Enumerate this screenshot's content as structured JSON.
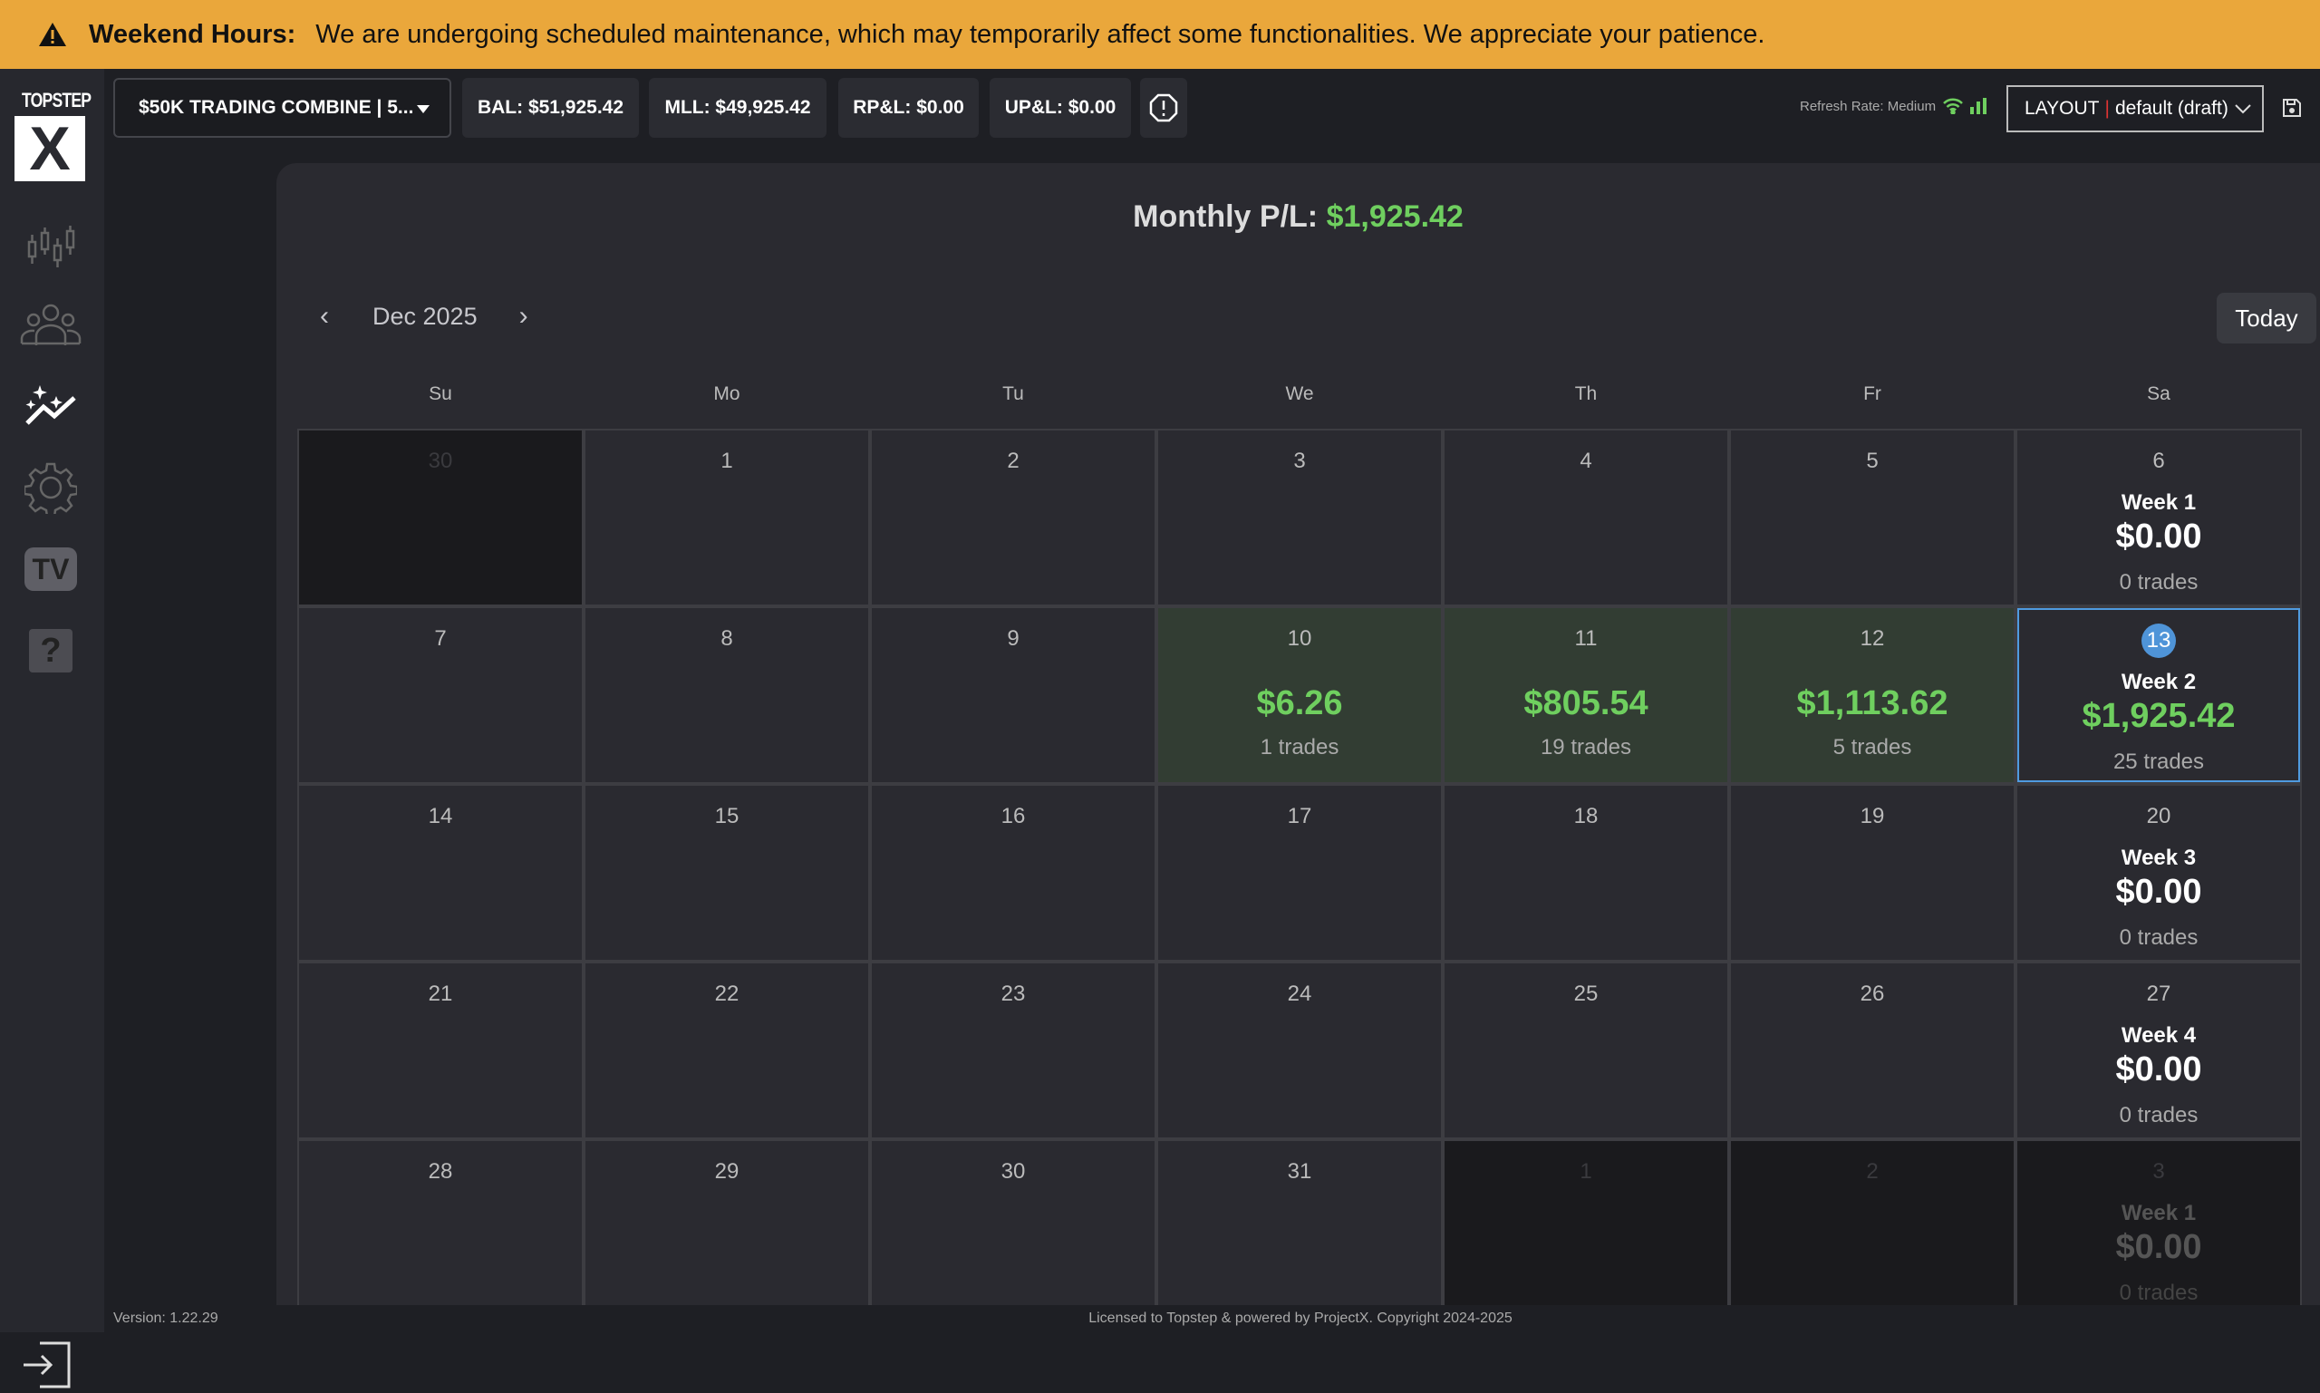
{
  "banner": {
    "title": "Weekend Hours:",
    "message": "We are undergoing scheduled maintenance, which may temporarily affect some functionalities. We appreciate your patience.",
    "color": "#eaa73b"
  },
  "logo": {
    "top": "TOPSTEP",
    "mark": "X"
  },
  "sidebar": {
    "items": [
      {
        "icon": "candlestick-chart-icon"
      },
      {
        "icon": "users-group-icon"
      },
      {
        "icon": "sparkle-trend-icon",
        "active": true
      },
      {
        "icon": "gear-icon"
      },
      {
        "icon": "tv-icon",
        "label": "TV"
      },
      {
        "icon": "help-icon",
        "label": "?"
      }
    ]
  },
  "topbar": {
    "account": "$50K TRADING COMBINE  |  5...",
    "bal": "BAL: $51,925.42",
    "mll": "MLL: $49,925.42",
    "rpl": "RP&L: $0.00",
    "upl": "UP&L: $0.00",
    "refresh": "Refresh Rate: Medium",
    "layout_prefix": "LAYOUT",
    "layout_sep": "|",
    "layout_value": "default (draft)"
  },
  "calendar": {
    "monthly_label": "Monthly P/L:",
    "monthly_value": "$1,925.42",
    "month": "Dec 2025",
    "today_label": "Today",
    "weekdays": [
      "Su",
      "Mo",
      "Tu",
      "We",
      "Th",
      "Fr",
      "Sa"
    ],
    "positive_color": "#6fcf5f",
    "today_color": "#4f94d8",
    "weeks": [
      {
        "days": [
          {
            "d": "30",
            "muted": true
          },
          {
            "d": "1"
          },
          {
            "d": "2"
          },
          {
            "d": "3"
          },
          {
            "d": "4"
          },
          {
            "d": "5"
          },
          {
            "d": "6"
          }
        ],
        "label": "Week 1",
        "total": "$0.00",
        "trades": "0 trades"
      },
      {
        "days": [
          {
            "d": "7"
          },
          {
            "d": "8"
          },
          {
            "d": "9"
          },
          {
            "d": "10",
            "pnl": "$6.26",
            "trades": "1 trades"
          },
          {
            "d": "11",
            "pnl": "$805.54",
            "trades": "19 trades"
          },
          {
            "d": "12",
            "pnl": "$1,113.62",
            "trades": "5 trades"
          },
          {
            "d": "13",
            "today": true
          }
        ],
        "label": "Week 2",
        "total": "$1,925.42",
        "trades": "25 trades",
        "positive": true
      },
      {
        "days": [
          {
            "d": "14"
          },
          {
            "d": "15"
          },
          {
            "d": "16"
          },
          {
            "d": "17"
          },
          {
            "d": "18"
          },
          {
            "d": "19"
          },
          {
            "d": "20"
          }
        ],
        "label": "Week 3",
        "total": "$0.00",
        "trades": "0 trades"
      },
      {
        "days": [
          {
            "d": "21"
          },
          {
            "d": "22"
          },
          {
            "d": "23"
          },
          {
            "d": "24"
          },
          {
            "d": "25"
          },
          {
            "d": "26"
          },
          {
            "d": "27"
          }
        ],
        "label": "Week 4",
        "total": "$0.00",
        "trades": "0 trades"
      },
      {
        "days": [
          {
            "d": "28"
          },
          {
            "d": "29"
          },
          {
            "d": "30"
          },
          {
            "d": "31"
          },
          {
            "d": "1",
            "muted": true
          },
          {
            "d": "2",
            "muted": true
          },
          {
            "d": "3",
            "muted": true
          }
        ],
        "label": "Week 1",
        "total": "$0.00",
        "trades": "0 trades"
      }
    ]
  },
  "footer": {
    "version": "Version: 1.22.29",
    "license": "Licensed to Topstep & powered by ProjectX. Copyright 2024-2025"
  }
}
